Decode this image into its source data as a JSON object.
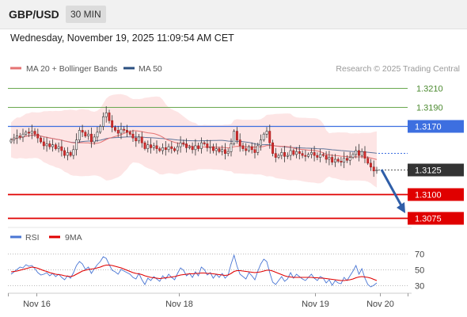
{
  "header": {
    "symbol": "GBP/USD",
    "timeframe": "30 MIN",
    "datetime": "Wednesday, November 19, 2025 11:09:54 AM CET"
  },
  "legend": {
    "ma20": "MA 20 + Bollinger Bands",
    "ma50": "MA 50",
    "source": "Research © 2025 Trading Central",
    "rsi": "RSI",
    "rsi_ma": "9MA"
  },
  "colors": {
    "up_candle": "#ffffff",
    "down_candle": "#d32f2f",
    "ma20": "#e57373",
    "ma50": "#2b4f80",
    "bands": "#fde0e0",
    "resistance": "#6aa84f",
    "pivot": "#3d6fe0",
    "support": "#e00000",
    "current": "#333333",
    "rsi": "#4a76d4",
    "rsi_ma": "#e00000"
  },
  "chart_data": [
    {
      "type": "candlestick",
      "title": "GBP/USD",
      "x_ticks": [
        "Nov 16",
        "Nov 18",
        "Nov 19",
        "Nov 20"
      ],
      "ylim": [
        1.3068,
        1.3222
      ],
      "levels": [
        {
          "label": "1.3210",
          "value": 1.321,
          "kind": "resistance"
        },
        {
          "label": "1.3190",
          "value": 1.319,
          "kind": "resistance"
        },
        {
          "label": "1.3170",
          "value": 1.317,
          "kind": "pivot"
        },
        {
          "label": "1.3125",
          "value": 1.3125,
          "kind": "current"
        },
        {
          "label": "1.3100",
          "value": 1.31,
          "kind": "support"
        },
        {
          "label": "1.3075",
          "value": 1.3075,
          "kind": "support"
        }
      ],
      "close": [
        1.3156,
        1.3158,
        1.316,
        1.3159,
        1.3162,
        1.3164,
        1.3163,
        1.3165,
        1.3162,
        1.3158,
        1.3154,
        1.315,
        1.3152,
        1.3149,
        1.3151,
        1.3147,
        1.3149,
        1.3145,
        1.314,
        1.3143,
        1.314,
        1.3146,
        1.3156,
        1.3166,
        1.3164,
        1.316,
        1.3162,
        1.3154,
        1.3159,
        1.3164,
        1.317,
        1.318,
        1.3184,
        1.3176,
        1.3169,
        1.3166,
        1.3163,
        1.3167,
        1.3166,
        1.3164,
        1.3162,
        1.3158,
        1.3155,
        1.3159,
        1.3153,
        1.3147,
        1.3151,
        1.3148,
        1.315,
        1.3147,
        1.3145,
        1.3148,
        1.3146,
        1.3149,
        1.3147,
        1.3145,
        1.3149,
        1.3153,
        1.3152,
        1.3148,
        1.3149,
        1.3146,
        1.315,
        1.3147,
        1.3153,
        1.3152,
        1.3148,
        1.3149,
        1.3145,
        1.3147,
        1.3144,
        1.3146,
        1.3142,
        1.3144,
        1.3152,
        1.3165,
        1.3156,
        1.315,
        1.3147,
        1.3145,
        1.3149,
        1.3146,
        1.3143,
        1.315,
        1.3156,
        1.3162,
        1.3165,
        1.3153,
        1.3142,
        1.3138,
        1.314,
        1.3143,
        1.3139,
        1.314,
        1.3145,
        1.3141,
        1.3144,
        1.3142,
        1.314,
        1.3139,
        1.3141,
        1.3143,
        1.314,
        1.3138,
        1.3141,
        1.314,
        1.3136,
        1.3138,
        1.3133,
        1.3136,
        1.3134,
        1.3133,
        1.3137,
        1.3135,
        1.3138,
        1.3141,
        1.3145,
        1.314,
        1.3144,
        1.3137,
        1.3132,
        1.3128,
        1.3124,
        1.3125
      ],
      "series": [
        {
          "name": "MA 20 + Bollinger Bands"
        },
        {
          "name": "MA 50"
        }
      ]
    },
    {
      "type": "line",
      "title": "RSI",
      "ylim": [
        22,
        78
      ],
      "y_ticks": [
        70,
        50,
        30
      ],
      "series": [
        {
          "name": "RSI",
          "values": [
            44,
            47,
            50,
            53,
            52,
            56,
            54,
            55,
            51,
            46,
            43,
            44,
            46,
            42,
            45,
            41,
            44,
            40,
            37,
            42,
            39,
            46,
            55,
            60,
            57,
            50,
            53,
            45,
            51,
            56,
            60,
            66,
            64,
            56,
            49,
            47,
            44,
            50,
            48,
            46,
            44,
            40,
            38,
            45,
            37,
            31,
            39,
            36,
            41,
            38,
            35,
            42,
            38,
            44,
            40,
            37,
            45,
            52,
            49,
            42,
            45,
            40,
            47,
            42,
            53,
            50,
            43,
            46,
            39,
            44,
            40,
            45,
            39,
            43,
            57,
            68,
            54,
            44,
            41,
            38,
            46,
            42,
            37,
            48,
            57,
            63,
            60,
            46,
            34,
            31,
            36,
            41,
            35,
            38,
            46,
            39,
            44,
            41,
            38,
            36,
            40,
            44,
            39,
            36,
            41,
            39,
            33,
            37,
            30,
            36,
            33,
            32,
            40,
            36,
            42,
            48,
            55,
            44,
            51,
            39,
            31,
            28,
            30,
            33
          ]
        },
        {
          "name": "9MA",
          "values": [
            47,
            47.5,
            48,
            49,
            50,
            51,
            52,
            53,
            52.5,
            51.5,
            50,
            48.5,
            47.5,
            46,
            45,
            44,
            43.5,
            43,
            42,
            41.5,
            41,
            42,
            44,
            46,
            48,
            49,
            50,
            50.5,
            51,
            52,
            53,
            54.5,
            55.5,
            55.5,
            55,
            54,
            53,
            52,
            50.5,
            49,
            47.5,
            46,
            45,
            44.5,
            43.5,
            42,
            41,
            40,
            39.5,
            39,
            38.5,
            39,
            39.5,
            40,
            40.5,
            41,
            42,
            43,
            43.5,
            44,
            44.5,
            44.5,
            45,
            45,
            45.5,
            45.5,
            45,
            45,
            44.5,
            44,
            43.5,
            43,
            42.5,
            43,
            45,
            47.5,
            48.5,
            48.5,
            48,
            47.5,
            47,
            46.5,
            46,
            46.5,
            47,
            48,
            49,
            49,
            48,
            46.5,
            45,
            43.5,
            42,
            41,
            40.5,
            40,
            40,
            40,
            40,
            40,
            40,
            40,
            39.5,
            39.5,
            39,
            39,
            38.5,
            38,
            37.5,
            37,
            36.5,
            36,
            36,
            36.5,
            37,
            38,
            39.5,
            40.5,
            41,
            40.5,
            40,
            39,
            37.5,
            36
          ]
        }
      ]
    }
  ]
}
